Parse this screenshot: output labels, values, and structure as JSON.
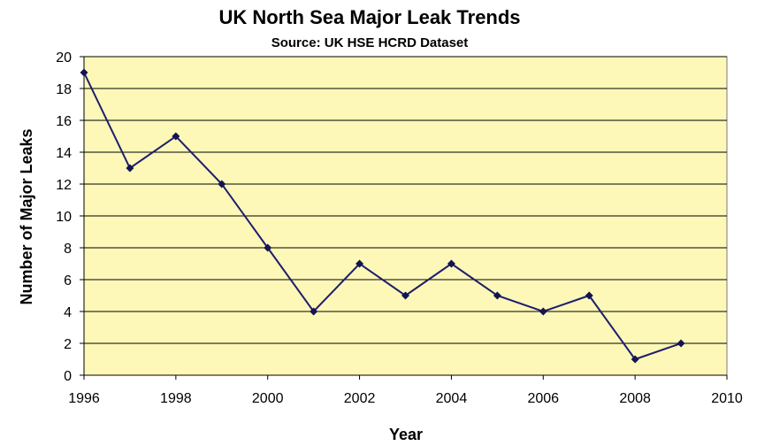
{
  "chart_data": {
    "type": "line",
    "title": "UK North Sea Major Leak Trends",
    "subtitle": "Source: UK HSE HCRD Dataset",
    "xlabel": "Year",
    "ylabel": "Number of Major Leaks",
    "xlim": [
      1996,
      2010
    ],
    "ylim": [
      0,
      20
    ],
    "x_ticks": [
      1996,
      1998,
      2000,
      2002,
      2004,
      2006,
      2008,
      2010
    ],
    "y_ticks": [
      0,
      2,
      4,
      6,
      8,
      10,
      12,
      14,
      16,
      18,
      20
    ],
    "grid": true,
    "series": [
      {
        "x": [
          1996,
          1997,
          1998,
          1999,
          2000,
          2001,
          2002,
          2003,
          2004,
          2005,
          2006,
          2007,
          2008,
          2009
        ],
        "values": [
          19,
          13,
          15,
          12,
          8,
          4,
          7,
          5,
          7,
          5,
          4,
          5,
          1,
          2
        ]
      }
    ],
    "colors": {
      "plot_background": "#fdf8b8",
      "line": "#1e1e6e",
      "marker": "#141450",
      "gridline": "#000000"
    }
  }
}
